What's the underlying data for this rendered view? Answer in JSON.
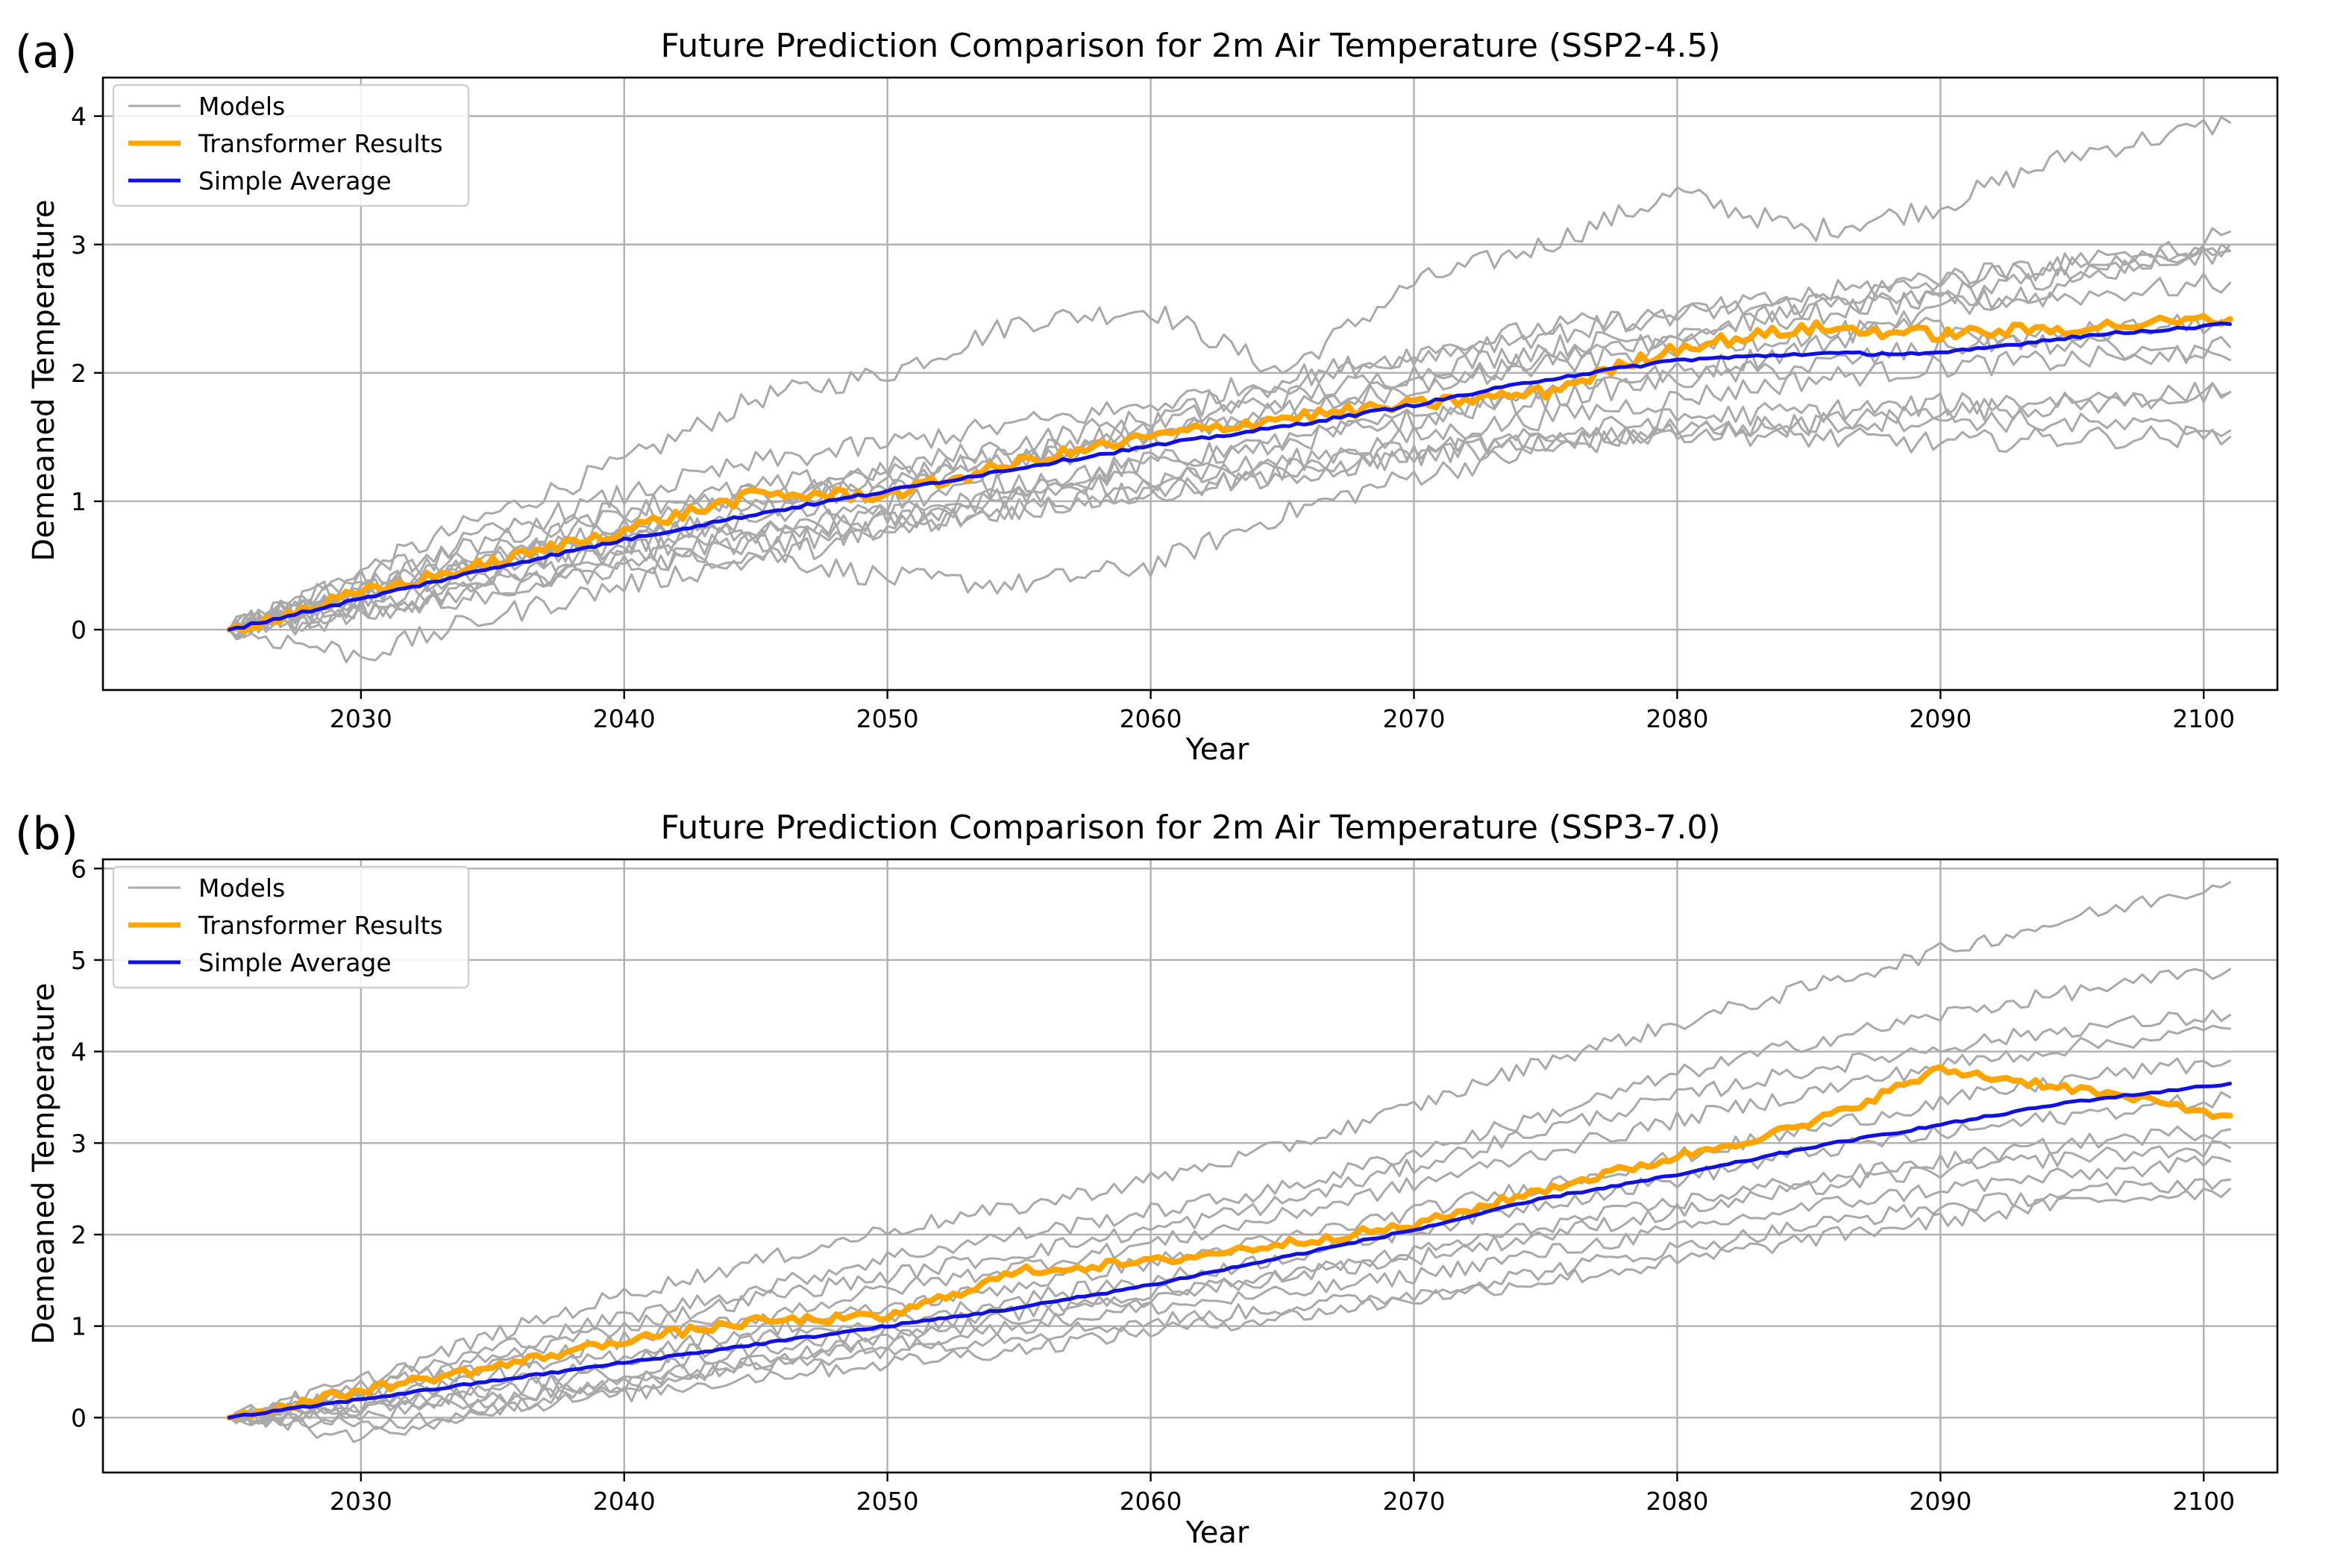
{
  "chart_data": [
    {
      "panel_label": "(a)",
      "type": "line",
      "title": "Future Prediction Comparison for 2m Air Temperature (SSP2-4.5)",
      "xlabel": "Year",
      "ylabel": "Demeaned Temperature",
      "xlim": [
        2020.2,
        2102.8
      ],
      "ylim": [
        -0.47,
        4.3
      ],
      "xticks": [
        2030,
        2040,
        2050,
        2060,
        2070,
        2080,
        2090,
        2100
      ],
      "yticks": [
        0,
        1,
        2,
        3,
        4
      ],
      "grid": true,
      "legend_position": "top-left",
      "legend": [
        "Models",
        "Transformer Results",
        "Simple Average"
      ],
      "colors": {
        "models": "#a9a9a9",
        "transformer": "#ffa500",
        "average": "#1010e0"
      },
      "x": [
        2025,
        2030,
        2035,
        2040,
        2045,
        2050,
        2055,
        2060,
        2065,
        2070,
        2075,
        2080,
        2085,
        2090,
        2095,
        2101
      ],
      "series": [
        {
          "name": "Transformer Results",
          "values": [
            0.0,
            0.28,
            0.52,
            0.78,
            1.05,
            1.05,
            1.3,
            1.5,
            1.65,
            1.75,
            1.85,
            2.2,
            2.35,
            2.3,
            2.35,
            2.42
          ]
        },
        {
          "name": "Simple Average",
          "values": [
            0.0,
            0.24,
            0.48,
            0.7,
            0.9,
            1.08,
            1.26,
            1.43,
            1.58,
            1.75,
            1.95,
            2.1,
            2.15,
            2.15,
            2.28,
            2.38
          ]
        },
        {
          "name": "Models",
          "values": [
            0.0,
            0.3,
            0.55,
            0.75,
            0.95,
            1.1,
            1.3,
            1.5,
            1.7,
            1.9,
            2.1,
            2.3,
            2.45,
            2.6,
            2.75,
            3.0
          ]
        },
        {
          "name": "Models",
          "values": [
            0.0,
            0.45,
            0.9,
            1.3,
            1.8,
            2.0,
            2.4,
            2.5,
            2.0,
            2.7,
            3.0,
            3.4,
            3.1,
            3.3,
            3.7,
            3.95
          ]
        },
        {
          "name": "Models",
          "values": [
            0.0,
            0.2,
            0.4,
            0.6,
            0.75,
            0.85,
            1.05,
            1.3,
            1.45,
            1.65,
            1.9,
            2.0,
            2.2,
            2.5,
            2.7,
            3.1
          ]
        },
        {
          "name": "Models",
          "values": [
            0.0,
            0.1,
            0.3,
            0.5,
            0.6,
            0.4,
            0.35,
            0.5,
            0.9,
            1.2,
            1.4,
            1.55,
            1.6,
            1.7,
            1.75,
            1.85
          ]
        },
        {
          "name": "Models",
          "values": [
            0.0,
            0.3,
            0.6,
            0.9,
            1.05,
            1.2,
            1.35,
            1.6,
            1.8,
            2.0,
            2.2,
            2.3,
            2.5,
            2.55,
            2.6,
            2.7
          ]
        },
        {
          "name": "Models",
          "values": [
            0.0,
            0.15,
            0.35,
            0.55,
            0.7,
            0.85,
            1.05,
            1.2,
            1.3,
            1.5,
            1.65,
            1.8,
            1.95,
            2.05,
            2.1,
            2.2
          ]
        },
        {
          "name": "Models",
          "values": [
            0.0,
            0.35,
            0.7,
            0.95,
            1.1,
            1.25,
            1.45,
            1.65,
            1.9,
            2.15,
            2.35,
            2.45,
            2.55,
            2.7,
            2.85,
            2.95
          ]
        },
        {
          "name": "Models",
          "values": [
            0.0,
            -0.2,
            0.1,
            0.35,
            0.55,
            0.75,
            0.95,
            1.1,
            1.2,
            1.35,
            1.5,
            1.55,
            1.5,
            1.45,
            1.5,
            1.5
          ]
        },
        {
          "name": "Models",
          "values": [
            0.0,
            0.25,
            0.5,
            0.7,
            0.85,
            1.0,
            1.15,
            1.3,
            1.45,
            1.65,
            1.8,
            1.95,
            2.05,
            2.2,
            2.3,
            2.4
          ]
        },
        {
          "name": "Models",
          "values": [
            0.0,
            0.2,
            0.45,
            0.65,
            0.8,
            0.9,
            1.05,
            1.15,
            1.25,
            1.4,
            1.5,
            1.65,
            1.7,
            1.75,
            1.8,
            1.85
          ]
        },
        {
          "name": "Models",
          "values": [
            0.0,
            0.4,
            0.75,
            1.05,
            1.3,
            1.45,
            1.6,
            1.75,
            1.95,
            2.15,
            2.3,
            2.45,
            2.6,
            2.75,
            2.85,
            2.95
          ]
        },
        {
          "name": "Models",
          "values": [
            0.0,
            0.1,
            0.3,
            0.5,
            0.65,
            0.8,
            0.95,
            1.05,
            1.2,
            1.35,
            1.45,
            1.55,
            1.6,
            1.65,
            1.6,
            1.55
          ]
        },
        {
          "name": "Models",
          "values": [
            0.0,
            0.3,
            0.55,
            0.8,
            1.0,
            1.2,
            1.35,
            1.5,
            1.7,
            1.9,
            2.05,
            2.2,
            2.3,
            2.35,
            2.2,
            2.1
          ]
        }
      ]
    },
    {
      "panel_label": "(b)",
      "type": "line",
      "title": "Future Prediction Comparison for 2m Air Temperature (SSP3-7.0)",
      "xlabel": "Year",
      "ylabel": "Demeaned Temperature",
      "xlim": [
        2020.2,
        2102.8
      ],
      "ylim": [
        -0.6,
        6.1
      ],
      "xticks": [
        2030,
        2040,
        2050,
        2060,
        2070,
        2080,
        2090,
        2100
      ],
      "yticks": [
        0,
        1,
        2,
        3,
        4,
        5,
        6
      ],
      "grid": true,
      "legend_position": "top-left",
      "legend": [
        "Models",
        "Transformer Results",
        "Simple Average"
      ],
      "colors": {
        "models": "#a9a9a9",
        "transformer": "#ffa500",
        "average": "#1010e0"
      },
      "x": [
        2025,
        2030,
        2035,
        2040,
        2045,
        2050,
        2055,
        2060,
        2065,
        2070,
        2075,
        2080,
        2085,
        2090,
        2095,
        2101
      ],
      "series": [
        {
          "name": "Transformer Results",
          "values": [
            0.0,
            0.3,
            0.55,
            0.85,
            1.05,
            1.1,
            1.6,
            1.7,
            1.9,
            2.1,
            2.5,
            2.85,
            3.2,
            3.8,
            3.6,
            3.3
          ]
        },
        {
          "name": "Simple Average",
          "values": [
            0.0,
            0.2,
            0.4,
            0.6,
            0.8,
            1.0,
            1.2,
            1.45,
            1.75,
            2.05,
            2.4,
            2.65,
            2.95,
            3.2,
            3.45,
            3.65
          ]
        },
        {
          "name": "Models",
          "values": [
            0.0,
            0.4,
            0.9,
            1.35,
            1.7,
            2.05,
            2.3,
            2.6,
            2.95,
            3.4,
            3.9,
            4.3,
            4.7,
            5.1,
            5.45,
            5.85
          ]
        },
        {
          "name": "Models",
          "values": [
            0.0,
            0.35,
            0.75,
            1.1,
            1.4,
            1.75,
            2.0,
            2.25,
            2.5,
            2.9,
            3.3,
            3.75,
            4.1,
            4.4,
            4.65,
            4.9
          ]
        },
        {
          "name": "Models",
          "values": [
            0.0,
            0.3,
            0.65,
            1.0,
            1.3,
            1.55,
            1.8,
            2.05,
            2.35,
            2.75,
            3.15,
            3.5,
            3.8,
            4.05,
            4.25,
            4.4
          ]
        },
        {
          "name": "Models",
          "values": [
            0.0,
            0.25,
            0.55,
            0.85,
            1.1,
            1.4,
            1.65,
            1.9,
            2.2,
            2.55,
            2.9,
            3.25,
            3.55,
            3.85,
            4.05,
            4.25
          ]
        },
        {
          "name": "Models",
          "values": [
            0.0,
            0.2,
            0.45,
            0.7,
            0.95,
            1.2,
            1.45,
            1.7,
            1.95,
            2.25,
            2.55,
            2.85,
            3.15,
            3.45,
            3.7,
            3.9
          ]
        },
        {
          "name": "Models",
          "values": [
            0.0,
            0.15,
            0.35,
            0.6,
            0.85,
            1.05,
            1.3,
            1.5,
            1.75,
            2.05,
            2.35,
            2.6,
            2.9,
            3.1,
            3.3,
            3.5
          ]
        },
        {
          "name": "Models",
          "values": [
            0.0,
            -0.2,
            0.1,
            0.35,
            0.6,
            0.85,
            1.1,
            1.3,
            1.55,
            1.8,
            2.1,
            2.35,
            2.6,
            2.8,
            3.0,
            3.15
          ]
        },
        {
          "name": "Models",
          "values": [
            0.0,
            0.1,
            0.3,
            0.5,
            0.75,
            0.95,
            1.15,
            1.35,
            1.55,
            1.75,
            2.0,
            2.25,
            2.5,
            2.7,
            2.85,
            2.95
          ]
        },
        {
          "name": "Models",
          "values": [
            0.0,
            0.0,
            0.2,
            0.4,
            0.6,
            0.8,
            1.0,
            1.2,
            1.35,
            1.55,
            1.8,
            2.05,
            2.3,
            2.5,
            2.65,
            2.8
          ]
        },
        {
          "name": "Models",
          "values": [
            0.0,
            0.1,
            0.2,
            0.35,
            0.55,
            0.75,
            0.9,
            1.05,
            1.2,
            1.35,
            1.6,
            1.85,
            2.1,
            2.3,
            2.45,
            2.6
          ]
        },
        {
          "name": "Models",
          "values": [
            0.0,
            -0.1,
            0.1,
            0.25,
            0.45,
            0.6,
            0.75,
            0.95,
            1.1,
            1.3,
            1.5,
            1.7,
            1.95,
            2.15,
            2.35,
            2.5
          ]
        }
      ]
    }
  ]
}
